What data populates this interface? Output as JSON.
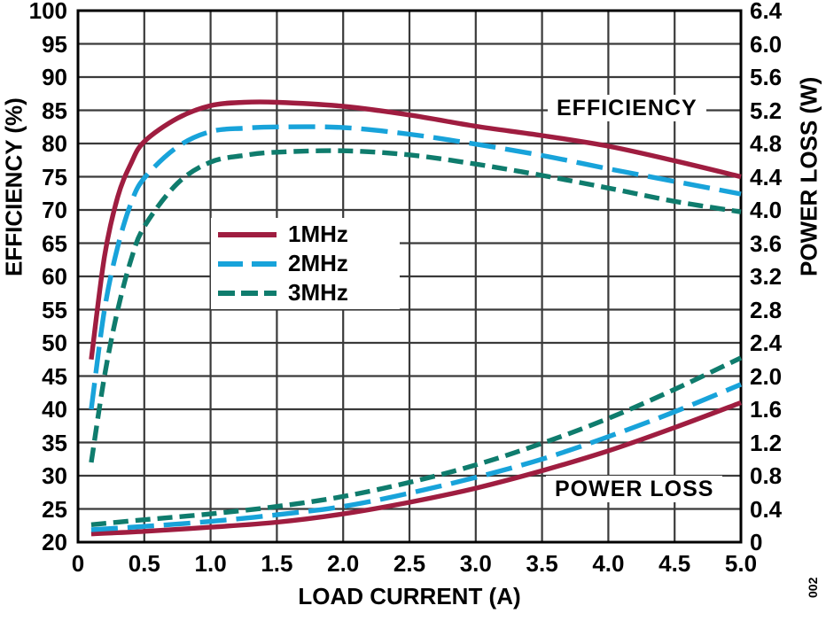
{
  "fig_number": "002",
  "colors": {
    "curve_1mhz": "#9F1D40",
    "curve_2mhz": "#18A3DA",
    "curve_3mhz": "#0F7C6D",
    "grid": "#3A3A3A",
    "frame": "#000000",
    "text": "#000000",
    "background": "#FFFFFF"
  },
  "annotations": {
    "efficiency": "EFFICIENCY",
    "power_loss": "POWER LOSS"
  },
  "chart_data": {
    "type": "line",
    "xlabel": "LOAD CURRENT (A)",
    "ylabel_left": "EFFICIENCY (%)",
    "ylabel_right": "POWER LOSS (W)",
    "xlim": [
      0,
      5
    ],
    "ylim_left": [
      20,
      100
    ],
    "ylim_right": [
      0,
      6.4
    ],
    "grid": "on",
    "x_ticks": [
      "0",
      "0.5",
      "1.0",
      "1.5",
      "2.0",
      "2.5",
      "3.0",
      "3.5",
      "4.0",
      "4.5",
      "5.0"
    ],
    "y_ticks_left": [
      "100",
      "95",
      "90",
      "85",
      "80",
      "75",
      "70",
      "65",
      "60",
      "55",
      "50",
      "45",
      "40",
      "35",
      "30",
      "25",
      "20"
    ],
    "y_ticks_right": [
      "6.4",
      "6.0",
      "5.6",
      "5.2",
      "4.8",
      "4.4",
      "4.0",
      "3.6",
      "3.2",
      "2.8",
      "2.4",
      "2.0",
      "1.6",
      "1.2",
      "0.8",
      "0.4",
      "0"
    ],
    "legend": [
      {
        "label": "1MHz",
        "dash": "solid",
        "color": "#9F1D40"
      },
      {
        "label": "2MHz",
        "dash": "long",
        "color": "#18A3DA"
      },
      {
        "label": "3MHz",
        "dash": "short",
        "color": "#0F7C6D"
      }
    ],
    "legend_position": "upper-left-inside",
    "series": [
      {
        "name": "efficiency-1mhz",
        "group": "EFFICIENCY",
        "legend": "1MHz",
        "axis": "left",
        "color": "#9F1D40",
        "dash": "solid",
        "x": [
          0.1,
          0.2,
          0.3,
          0.4,
          0.5,
          0.75,
          1.0,
          1.25,
          1.5,
          2.0,
          2.5,
          3.0,
          3.5,
          4.0,
          4.5,
          5.0
        ],
        "y": [
          47.5,
          63,
          72,
          77,
          80.3,
          83.8,
          85.7,
          86.2,
          86.2,
          85.6,
          84.3,
          82.6,
          81.2,
          79.6,
          77.4,
          75.0
        ]
      },
      {
        "name": "efficiency-2mhz",
        "group": "EFFICIENCY",
        "legend": "2MHz",
        "axis": "left",
        "color": "#18A3DA",
        "dash": "long",
        "x": [
          0.1,
          0.2,
          0.3,
          0.4,
          0.5,
          0.75,
          1.0,
          1.25,
          1.5,
          2.0,
          2.5,
          3.0,
          3.5,
          4.0,
          4.5,
          5.0
        ],
        "y": [
          40,
          55,
          64.5,
          71,
          74.8,
          79.5,
          81.8,
          82.3,
          82.5,
          82.4,
          81.4,
          79.9,
          78.2,
          76.2,
          74.3,
          72.4
        ]
      },
      {
        "name": "efficiency-3mhz",
        "group": "EFFICIENCY",
        "legend": "3MHz",
        "axis": "left",
        "color": "#0F7C6D",
        "dash": "short",
        "x": [
          0.1,
          0.2,
          0.3,
          0.4,
          0.5,
          0.75,
          1.0,
          1.25,
          1.5,
          2.0,
          2.5,
          3.0,
          3.5,
          4.0,
          4.5,
          5.0
        ],
        "y": [
          32,
          45,
          55,
          62.5,
          67.5,
          74,
          77.2,
          78.2,
          78.7,
          78.9,
          78.3,
          76.9,
          75.2,
          73.3,
          71.3,
          69.7
        ]
      },
      {
        "name": "power-loss-1mhz",
        "group": "POWER LOSS",
        "legend": "1MHz",
        "axis": "right",
        "color": "#9F1D40",
        "dash": "solid",
        "x": [
          0.1,
          0.5,
          1.0,
          1.5,
          2.0,
          2.5,
          3.0,
          3.5,
          4.0,
          4.5,
          5.0
        ],
        "y": [
          0.1,
          0.13,
          0.18,
          0.24,
          0.34,
          0.48,
          0.65,
          0.86,
          1.1,
          1.38,
          1.68
        ]
      },
      {
        "name": "power-loss-2mhz",
        "group": "POWER LOSS",
        "legend": "2MHz",
        "axis": "right",
        "color": "#18A3DA",
        "dash": "long",
        "x": [
          0.1,
          0.5,
          1.0,
          1.5,
          2.0,
          2.5,
          3.0,
          3.5,
          4.0,
          4.5,
          5.0
        ],
        "y": [
          0.15,
          0.19,
          0.25,
          0.33,
          0.43,
          0.59,
          0.78,
          1.0,
          1.27,
          1.57,
          1.9
        ]
      },
      {
        "name": "power-loss-3mhz",
        "group": "POWER LOSS",
        "legend": "3MHz",
        "axis": "right",
        "color": "#0F7C6D",
        "dash": "short",
        "x": [
          0.1,
          0.5,
          1.0,
          1.5,
          2.0,
          2.5,
          3.0,
          3.5,
          4.0,
          4.5,
          5.0
        ],
        "y": [
          0.21,
          0.27,
          0.34,
          0.43,
          0.55,
          0.72,
          0.93,
          1.19,
          1.49,
          1.84,
          2.22
        ]
      }
    ]
  }
}
